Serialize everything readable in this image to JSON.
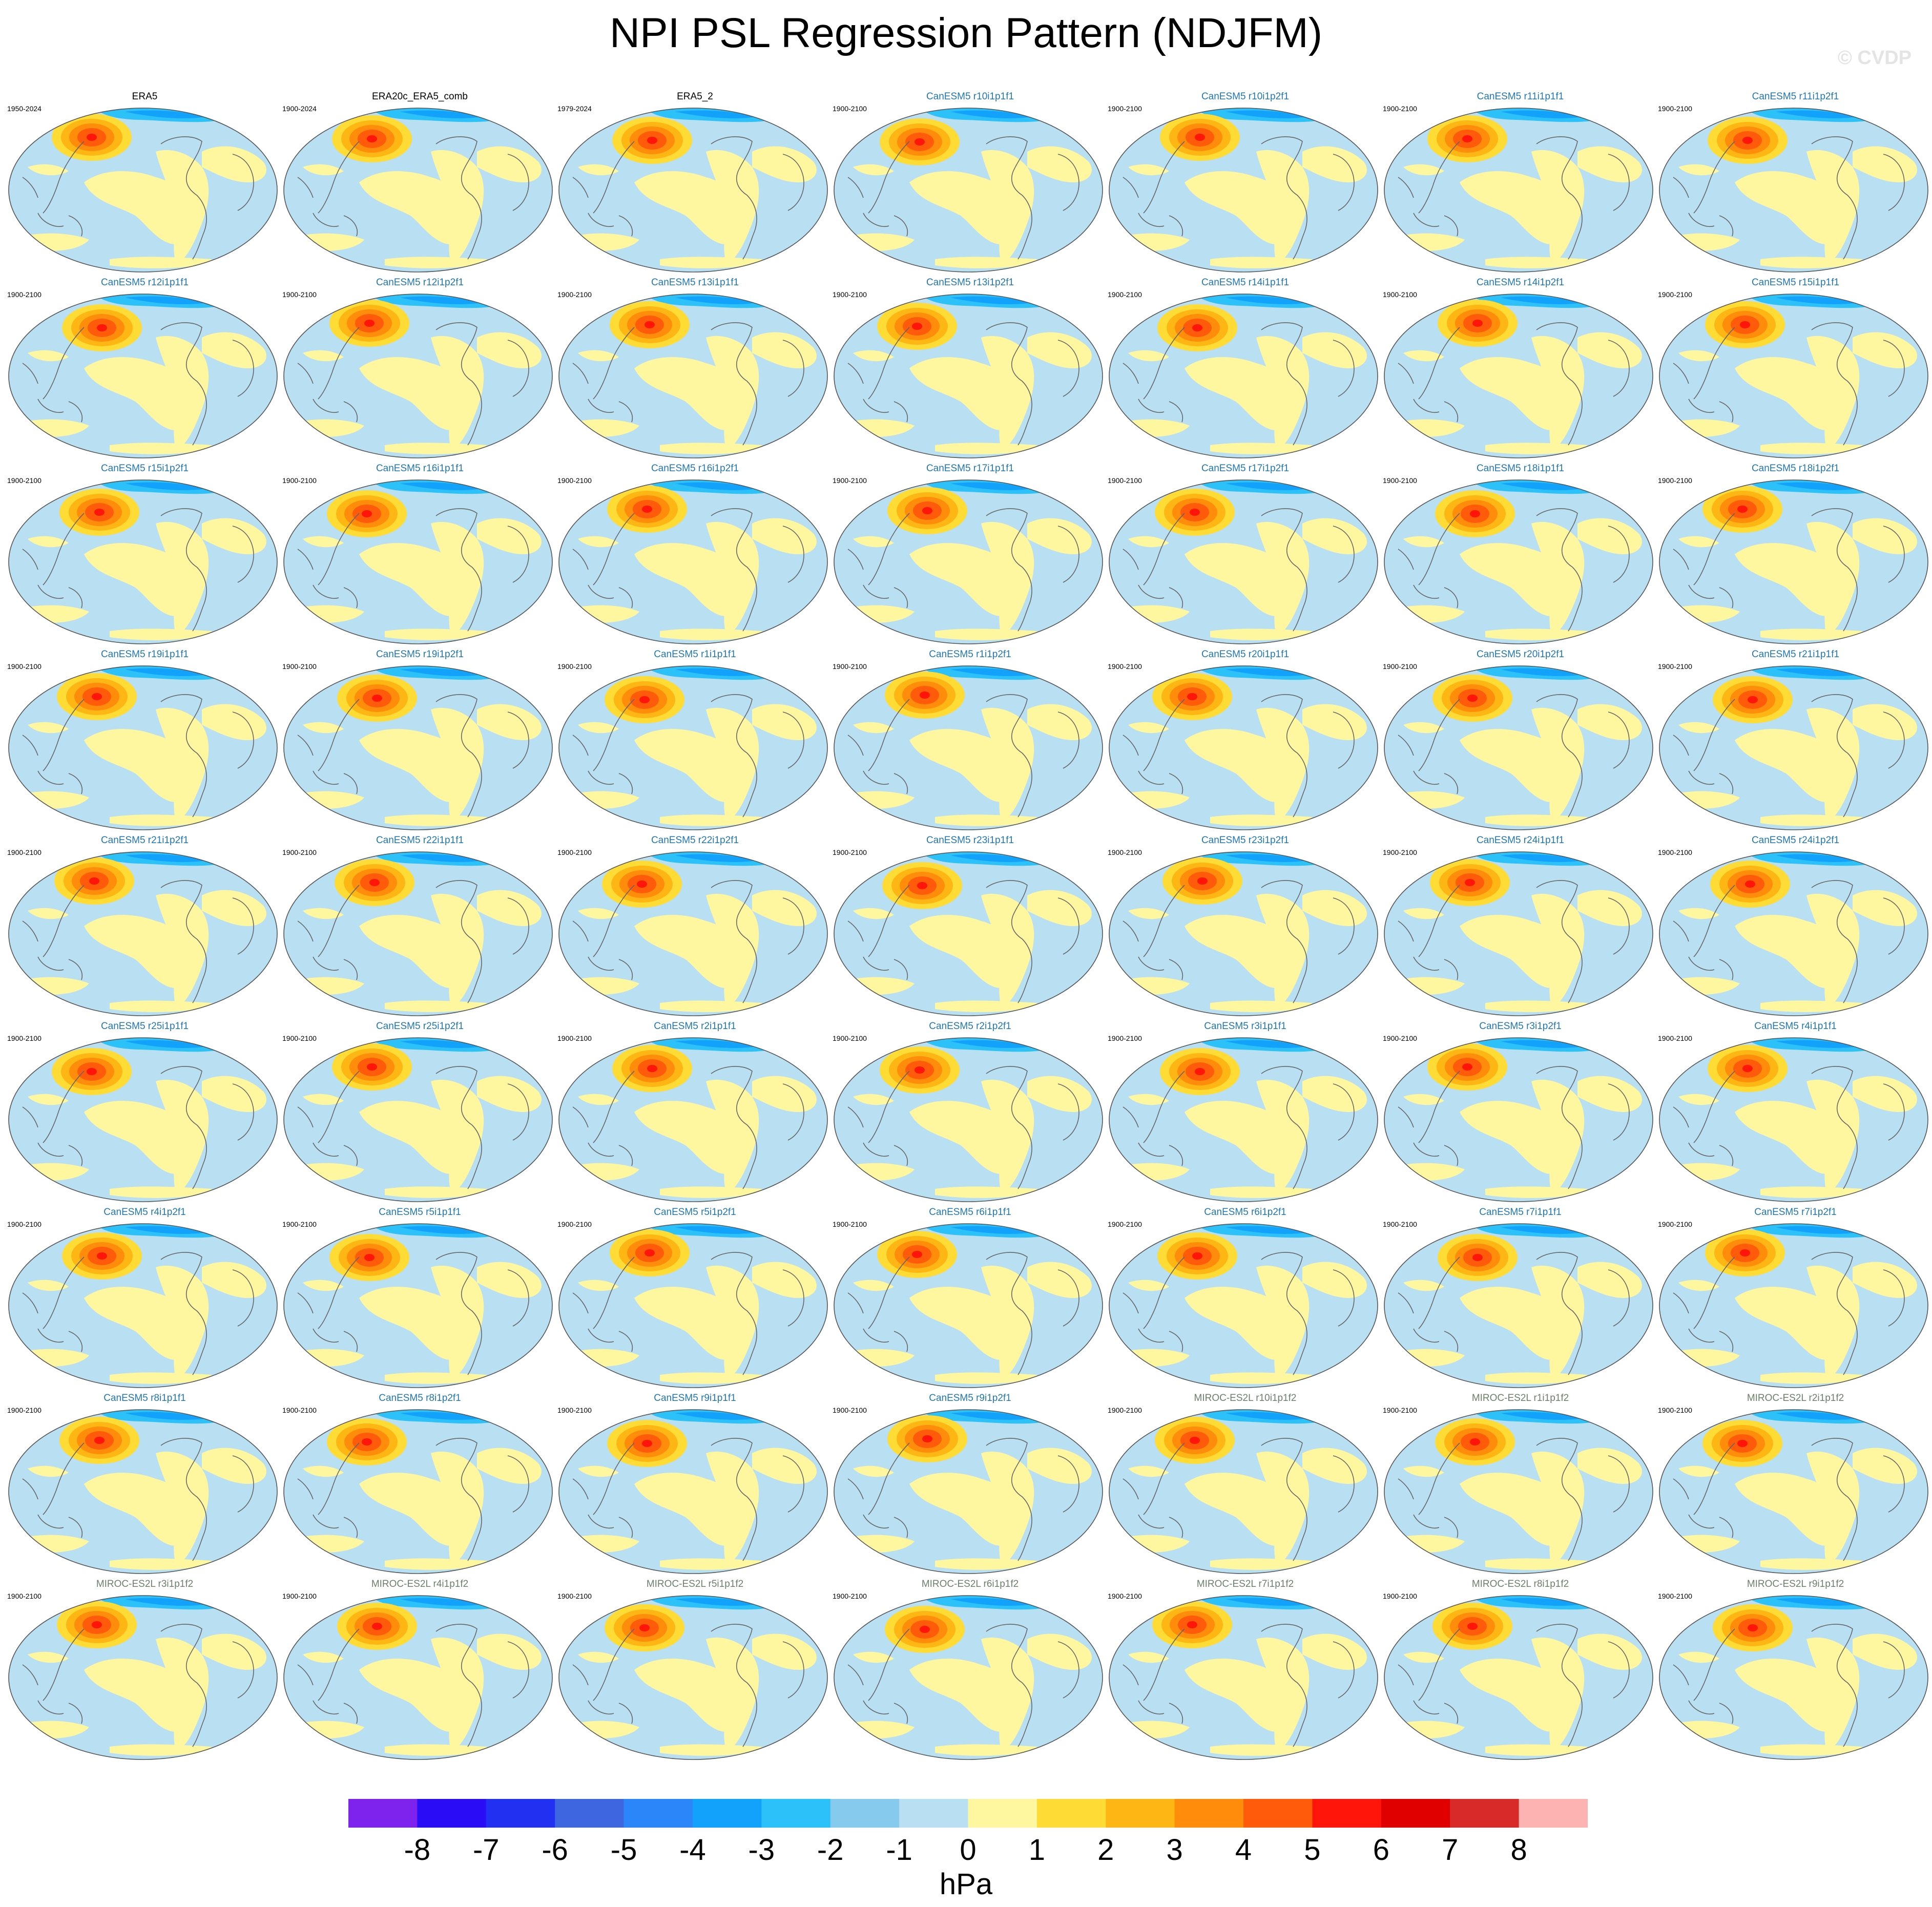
{
  "title": "NPI PSL Regression Pattern (NDJFM)",
  "watermark": "© CVDP",
  "panels": [
    {
      "label": "ERA5",
      "years": "1950-2024",
      "group": "obs"
    },
    {
      "label": "ERA20c_ERA5_comb",
      "years": "1900-2024",
      "group": "obs"
    },
    {
      "label": "ERA5_2",
      "years": "1979-2024",
      "group": "obs"
    },
    {
      "label": "CanESM5 r10i1p1f1",
      "years": "1900-2100",
      "group": "canesm"
    },
    {
      "label": "CanESM5 r10i1p2f1",
      "years": "1900-2100",
      "group": "canesm"
    },
    {
      "label": "CanESM5 r11i1p1f1",
      "years": "1900-2100",
      "group": "canesm"
    },
    {
      "label": "CanESM5 r11i1p2f1",
      "years": "1900-2100",
      "group": "canesm"
    },
    {
      "label": "CanESM5 r12i1p1f1",
      "years": "1900-2100",
      "group": "canesm"
    },
    {
      "label": "CanESM5 r12i1p2f1",
      "years": "1900-2100",
      "group": "canesm"
    },
    {
      "label": "CanESM5 r13i1p1f1",
      "years": "1900-2100",
      "group": "canesm"
    },
    {
      "label": "CanESM5 r13i1p2f1",
      "years": "1900-2100",
      "group": "canesm"
    },
    {
      "label": "CanESM5 r14i1p1f1",
      "years": "1900-2100",
      "group": "canesm"
    },
    {
      "label": "CanESM5 r14i1p2f1",
      "years": "1900-2100",
      "group": "canesm"
    },
    {
      "label": "CanESM5 r15i1p1f1",
      "years": "1900-2100",
      "group": "canesm"
    },
    {
      "label": "CanESM5 r15i1p2f1",
      "years": "1900-2100",
      "group": "canesm"
    },
    {
      "label": "CanESM5 r16i1p1f1",
      "years": "1900-2100",
      "group": "canesm"
    },
    {
      "label": "CanESM5 r16i1p2f1",
      "years": "1900-2100",
      "group": "canesm"
    },
    {
      "label": "CanESM5 r17i1p1f1",
      "years": "1900-2100",
      "group": "canesm"
    },
    {
      "label": "CanESM5 r17i1p2f1",
      "years": "1900-2100",
      "group": "canesm"
    },
    {
      "label": "CanESM5 r18i1p1f1",
      "years": "1900-2100",
      "group": "canesm"
    },
    {
      "label": "CanESM5 r18i1p2f1",
      "years": "1900-2100",
      "group": "canesm"
    },
    {
      "label": "CanESM5 r19i1p1f1",
      "years": "1900-2100",
      "group": "canesm"
    },
    {
      "label": "CanESM5 r19i1p2f1",
      "years": "1900-2100",
      "group": "canesm"
    },
    {
      "label": "CanESM5 r1i1p1f1",
      "years": "1900-2100",
      "group": "canesm"
    },
    {
      "label": "CanESM5 r1i1p2f1",
      "years": "1900-2100",
      "group": "canesm"
    },
    {
      "label": "CanESM5 r20i1p1f1",
      "years": "1900-2100",
      "group": "canesm"
    },
    {
      "label": "CanESM5 r20i1p2f1",
      "years": "1900-2100",
      "group": "canesm"
    },
    {
      "label": "CanESM5 r21i1p1f1",
      "years": "1900-2100",
      "group": "canesm"
    },
    {
      "label": "CanESM5 r21i1p2f1",
      "years": "1900-2100",
      "group": "canesm"
    },
    {
      "label": "CanESM5 r22i1p1f1",
      "years": "1900-2100",
      "group": "canesm"
    },
    {
      "label": "CanESM5 r22i1p2f1",
      "years": "1900-2100",
      "group": "canesm"
    },
    {
      "label": "CanESM5 r23i1p1f1",
      "years": "1900-2100",
      "group": "canesm"
    },
    {
      "label": "CanESM5 r23i1p2f1",
      "years": "1900-2100",
      "group": "canesm"
    },
    {
      "label": "CanESM5 r24i1p1f1",
      "years": "1900-2100",
      "group": "canesm"
    },
    {
      "label": "CanESM5 r24i1p2f1",
      "years": "1900-2100",
      "group": "canesm"
    },
    {
      "label": "CanESM5 r25i1p1f1",
      "years": "1900-2100",
      "group": "canesm"
    },
    {
      "label": "CanESM5 r25i1p2f1",
      "years": "1900-2100",
      "group": "canesm"
    },
    {
      "label": "CanESM5 r2i1p1f1",
      "years": "1900-2100",
      "group": "canesm"
    },
    {
      "label": "CanESM5 r2i1p2f1",
      "years": "1900-2100",
      "group": "canesm"
    },
    {
      "label": "CanESM5 r3i1p1f1",
      "years": "1900-2100",
      "group": "canesm"
    },
    {
      "label": "CanESM5 r3i1p2f1",
      "years": "1900-2100",
      "group": "canesm"
    },
    {
      "label": "CanESM5 r4i1p1f1",
      "years": "1900-2100",
      "group": "canesm"
    },
    {
      "label": "CanESM5 r4i1p2f1",
      "years": "1900-2100",
      "group": "canesm"
    },
    {
      "label": "CanESM5 r5i1p1f1",
      "years": "1900-2100",
      "group": "canesm"
    },
    {
      "label": "CanESM5 r5i1p2f1",
      "years": "1900-2100",
      "group": "canesm"
    },
    {
      "label": "CanESM5 r6i1p1f1",
      "years": "1900-2100",
      "group": "canesm"
    },
    {
      "label": "CanESM5 r6i1p2f1",
      "years": "1900-2100",
      "group": "canesm"
    },
    {
      "label": "CanESM5 r7i1p1f1",
      "years": "1900-2100",
      "group": "canesm"
    },
    {
      "label": "CanESM5 r7i1p2f1",
      "years": "1900-2100",
      "group": "canesm"
    },
    {
      "label": "CanESM5 r8i1p1f1",
      "years": "1900-2100",
      "group": "canesm"
    },
    {
      "label": "CanESM5 r8i1p2f1",
      "years": "1900-2100",
      "group": "canesm"
    },
    {
      "label": "CanESM5 r9i1p1f1",
      "years": "1900-2100",
      "group": "canesm"
    },
    {
      "label": "CanESM5 r9i1p2f1",
      "years": "1900-2100",
      "group": "canesm"
    },
    {
      "label": "MIROC-ES2L r10i1p1f2",
      "years": "1900-2100",
      "group": "miroc"
    },
    {
      "label": "MIROC-ES2L r1i1p1f2",
      "years": "1900-2100",
      "group": "miroc"
    },
    {
      "label": "MIROC-ES2L r2i1p1f2",
      "years": "1900-2100",
      "group": "miroc"
    },
    {
      "label": "MIROC-ES2L r3i1p1f2",
      "years": "1900-2100",
      "group": "miroc"
    },
    {
      "label": "MIROC-ES2L r4i1p1f2",
      "years": "1900-2100",
      "group": "miroc"
    },
    {
      "label": "MIROC-ES2L r5i1p1f2",
      "years": "1900-2100",
      "group": "miroc"
    },
    {
      "label": "MIROC-ES2L r6i1p1f2",
      "years": "1900-2100",
      "group": "miroc"
    },
    {
      "label": "MIROC-ES2L r7i1p1f2",
      "years": "1900-2100",
      "group": "miroc"
    },
    {
      "label": "MIROC-ES2L r8i1p1f2",
      "years": "1900-2100",
      "group": "miroc"
    },
    {
      "label": "MIROC-ES2L r9i1p1f2",
      "years": "1900-2100",
      "group": "miroc"
    }
  ],
  "label_colors": {
    "obs": "#000000",
    "canesm": "#1f77b4",
    "miroc": "#6b7f6b"
  },
  "colorbar": {
    "colors": [
      "#7e22ee",
      "#2a0cf7",
      "#2230f2",
      "#3d66e0",
      "#2b86fa",
      "#13a2fb",
      "#2cc2f9",
      "#86caee",
      "#b9dff2",
      "#fff7a0",
      "#fedb35",
      "#feb614",
      "#ff8c0a",
      "#ff5b0a",
      "#ff150a",
      "#e00000",
      "#d92a2a",
      "#feb3b3"
    ],
    "ticks": [
      "-8",
      "-7",
      "-6",
      "-5",
      "-4",
      "-3",
      "-2",
      "-1",
      "0",
      "1",
      "2",
      "3",
      "4",
      "5",
      "6",
      "7",
      "8"
    ],
    "units": "hPa"
  }
}
